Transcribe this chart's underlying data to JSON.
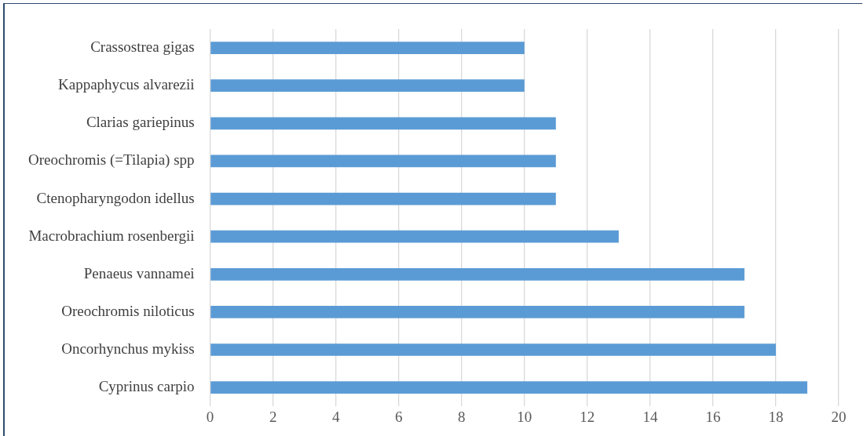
{
  "chart_data": {
    "type": "bar",
    "orientation": "horizontal",
    "categories": [
      "Crassostrea gigas",
      "Kappaphycus alvarezii",
      "Clarias gariepinus",
      "Oreochromis (=Tilapia) spp",
      "Ctenopharyngodon idellus",
      "Macrobrachium rosenbergii",
      "Penaeus vannamei",
      "Oreochromis niloticus",
      "Oncorhynchus mykiss",
      "Cyprinus carpio"
    ],
    "values": [
      10,
      10,
      11,
      11,
      11,
      13,
      17,
      17,
      18,
      19
    ],
    "color": "#5b9bd5",
    "xlim": [
      0,
      20
    ],
    "xticks": [
      0,
      2,
      4,
      6,
      8,
      10,
      12,
      14,
      16,
      18,
      20
    ],
    "grid": "x",
    "legend": false
  }
}
